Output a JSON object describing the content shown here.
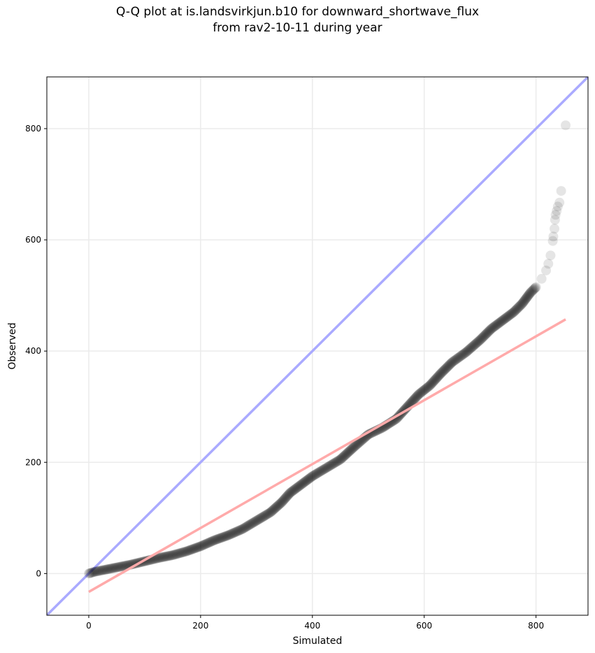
{
  "chart_data": {
    "type": "scatter",
    "title": [
      "Q-Q plot at is.landsvirkjun.b10 for downward_shortwave_flux",
      "from rav2-10-11 during year"
    ],
    "xlabel": "Simulated",
    "ylabel": "Observed",
    "xlim": [
      -75,
      893
    ],
    "ylim": [
      -75,
      893
    ],
    "xticks": [
      0,
      200,
      400,
      600,
      800
    ],
    "yticks": [
      0,
      200,
      400,
      600,
      800
    ],
    "grid": true,
    "colors": {
      "points": "#000000",
      "identity": "#aaaaff",
      "fit": "#ffaaaa",
      "grid": "#ebebeb"
    },
    "identity_line": {
      "x": [
        -75,
        893
      ],
      "y": [
        -75,
        893
      ]
    },
    "fit_line": {
      "x": [
        0,
        853
      ],
      "y": [
        -33,
        457
      ]
    },
    "points": [
      [
        0,
        0
      ],
      [
        10,
        3
      ],
      [
        25,
        6
      ],
      [
        50,
        11
      ],
      [
        75,
        16
      ],
      [
        100,
        22
      ],
      [
        125,
        28
      ],
      [
        150,
        33
      ],
      [
        175,
        40
      ],
      [
        200,
        49
      ],
      [
        225,
        60
      ],
      [
        250,
        69
      ],
      [
        275,
        80
      ],
      [
        300,
        95
      ],
      [
        325,
        110
      ],
      [
        345,
        128
      ],
      [
        360,
        145
      ],
      [
        380,
        160
      ],
      [
        400,
        175
      ],
      [
        425,
        190
      ],
      [
        450,
        205
      ],
      [
        475,
        228
      ],
      [
        500,
        250
      ],
      [
        525,
        262
      ],
      [
        550,
        278
      ],
      [
        570,
        300
      ],
      [
        590,
        322
      ],
      [
        610,
        338
      ],
      [
        630,
        360
      ],
      [
        650,
        380
      ],
      [
        675,
        398
      ],
      [
        700,
        420
      ],
      [
        720,
        440
      ],
      [
        740,
        455
      ],
      [
        760,
        470
      ],
      [
        775,
        485
      ],
      [
        790,
        505
      ],
      [
        800,
        515
      ],
      [
        810,
        530
      ],
      [
        818,
        545
      ],
      [
        822,
        557
      ],
      [
        826,
        572
      ],
      [
        830,
        598
      ],
      [
        831,
        606
      ],
      [
        833,
        620
      ],
      [
        834,
        636
      ],
      [
        835,
        645
      ],
      [
        837,
        652
      ],
      [
        839,
        660
      ],
      [
        842,
        667
      ],
      [
        845,
        688
      ],
      [
        853,
        806
      ]
    ]
  }
}
